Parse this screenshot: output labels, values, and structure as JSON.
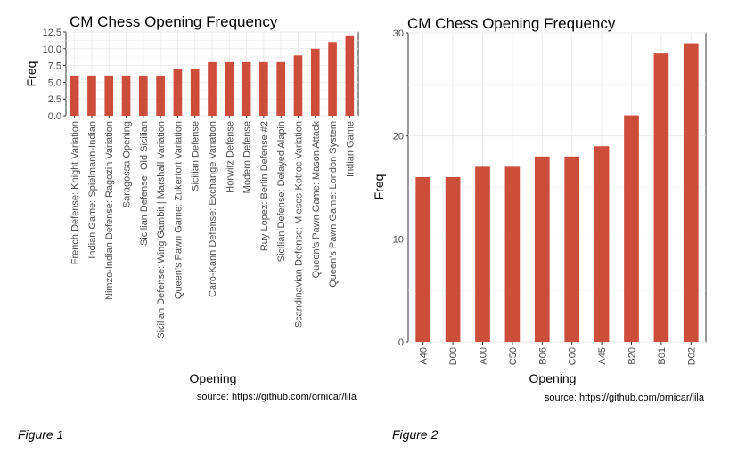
{
  "chart_data": [
    {
      "type": "bar",
      "title": "CM Chess Opening Frequency",
      "xlabel": "Opening",
      "ylabel": "Freq",
      "ylim": [
        0,
        12.5
      ],
      "yticks": [
        "0.0",
        "2.5",
        "5.0",
        "7.5",
        "10.0",
        "12.5"
      ],
      "ytick_values": [
        0,
        2.5,
        5,
        7.5,
        10,
        12.5
      ],
      "grid": true,
      "bar_color": "#cc4e3a",
      "categories": [
        "French Defense: Knight Variation",
        "Indian Game: Spielmann-Indian",
        "Nimzo-Indian Defense: Ragozin Variation",
        "Saragossa Opening",
        "Sicilian Defense: Old Sicilian",
        "Sicilian Defense: Wing Gambit | Marshall Variation",
        "Queen's Pawn Game: Zukertort Variation",
        "Sicilian Defense",
        "Caro-Kann Defense: Exchange Variation",
        "Horwitz Defense",
        "Modern Defense",
        "Ruy Lopez: Berlin Defense #2",
        "Sicilian Defense: Delayed Alapin",
        "Scandinavian Defense: Mieses-Kotroc Variation",
        "Queen's Pawn Game: Mason Attack",
        "Queen's Pawn Game: London System",
        "Indian Game"
      ],
      "values": [
        6,
        6,
        6,
        6,
        6,
        6,
        7,
        7,
        8,
        8,
        8,
        8,
        8,
        9,
        10,
        11,
        12
      ],
      "annotation": "source: https://github.com/ornicar/lila"
    },
    {
      "type": "bar",
      "title": "CM Chess Opening Frequency",
      "xlabel": "Opening",
      "ylabel": "Freq",
      "ylim": [
        0,
        30
      ],
      "yticks": [
        "0",
        "10",
        "20",
        "30"
      ],
      "ytick_values": [
        0,
        10,
        20,
        30
      ],
      "grid": true,
      "bar_color": "#cc4e3a",
      "categories": [
        "A40",
        "D00",
        "A00",
        "C50",
        "B06",
        "C00",
        "A45",
        "B20",
        "B01",
        "D02"
      ],
      "values": [
        16,
        16,
        17,
        17,
        18,
        18,
        19,
        22,
        28,
        29
      ],
      "annotation": "source: https://github.com/ornicar/lila"
    }
  ],
  "captions": [
    "Figure 1",
    "Figure 2"
  ]
}
